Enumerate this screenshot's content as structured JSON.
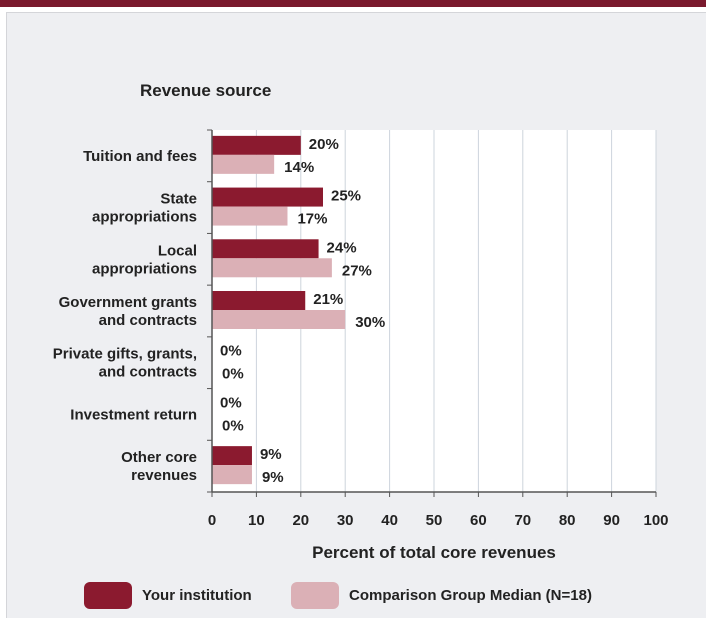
{
  "chart_data": {
    "type": "bar",
    "orientation": "horizontal",
    "categories": [
      [
        "Tuition and fees"
      ],
      [
        "State",
        "appropriations"
      ],
      [
        "Local",
        "appropriations"
      ],
      [
        "Government grants",
        "and contracts"
      ],
      [
        "Private gifts, grants,",
        "and contracts"
      ],
      [
        "Investment return"
      ],
      [
        "Other core",
        "revenues"
      ]
    ],
    "series": [
      {
        "name": "Your institution",
        "values": [
          20,
          25,
          24,
          21,
          0,
          0,
          9
        ],
        "color": "#8b1a2f"
      },
      {
        "name": "Comparison Group Median (N=18)",
        "values": [
          14,
          17,
          27,
          30,
          0,
          0,
          9
        ],
        "color": "#dbb0b6"
      }
    ],
    "value_suffix": "%",
    "category_axis_title": "Revenue source",
    "xlabel": "Percent of total core revenues",
    "xlim": [
      0,
      100
    ],
    "xticks": [
      0,
      10,
      20,
      30,
      40,
      50,
      60,
      70,
      80,
      90,
      100
    ],
    "grid": true,
    "legend_position": "bottom"
  }
}
